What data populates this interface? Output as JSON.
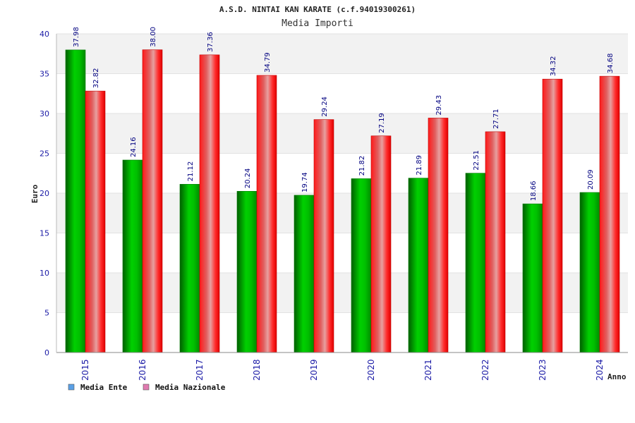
{
  "chart_data": {
    "type": "bar",
    "title": "A.S.D. NINTAI KAN KARATE (c.f.94019300261)",
    "subtitle": "Media Importi",
    "xlabel": "Anno",
    "ylabel": "Euro",
    "categories": [
      "2015",
      "2016",
      "2017",
      "2018",
      "2019",
      "2020",
      "2021",
      "2022",
      "2023",
      "2024"
    ],
    "series": [
      {
        "name": "Media Ente",
        "values": [
          37.98,
          24.16,
          21.12,
          20.24,
          19.74,
          21.82,
          21.89,
          22.51,
          18.66,
          20.09
        ]
      },
      {
        "name": "Media Nazionale",
        "values": [
          32.82,
          38.0,
          37.36,
          34.79,
          29.24,
          27.19,
          29.43,
          27.71,
          34.32,
          34.68
        ]
      }
    ],
    "ylim": [
      0,
      40
    ],
    "yticks": [
      0,
      5,
      10,
      15,
      20,
      25,
      30,
      35,
      40
    ],
    "grid": true,
    "legend_position": "bottom-left",
    "colors": {
      "series": [
        "#00b400",
        "#e8202a"
      ],
      "legend_swatches": [
        "#5aa0e6",
        "#e07ab0"
      ],
      "band": "#f2f2f2",
      "tick_text": "#1a1aa6"
    }
  }
}
